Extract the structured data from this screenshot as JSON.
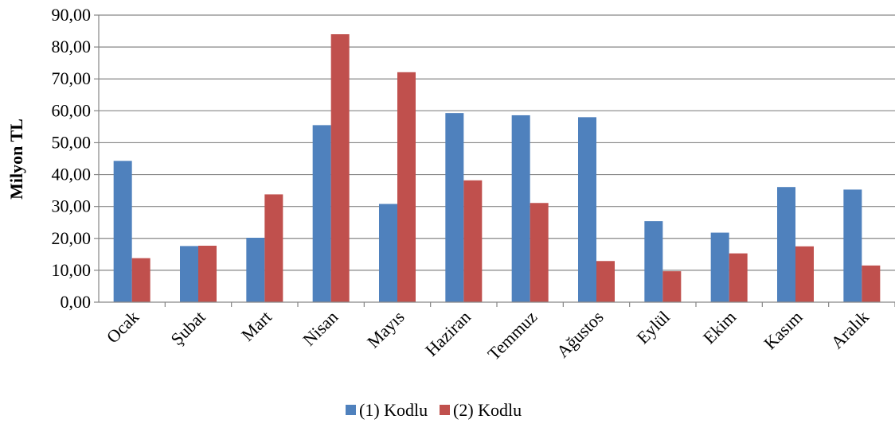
{
  "chart_data": {
    "type": "bar",
    "title": "",
    "xlabel": "",
    "ylabel": "Milyon TL",
    "ylim": [
      0,
      90
    ],
    "y_ticks": [
      "0,00",
      "10,00",
      "20,00",
      "30,00",
      "40,00",
      "50,00",
      "60,00",
      "70,00",
      "80,00",
      "90,00"
    ],
    "categories": [
      "Ocak",
      "Şubat",
      "Mart",
      "Nisan",
      "Mayıs",
      "Haziran",
      "Temmuz",
      "Ağustos",
      "Eylül",
      "Ekim",
      "Kasım",
      "Aralık"
    ],
    "series": [
      {
        "name": "(1) Kodlu",
        "color": "#4f81bd",
        "values": [
          44.3,
          17.6,
          20.2,
          55.5,
          30.8,
          59.3,
          58.6,
          58.0,
          25.4,
          21.8,
          36.1,
          35.3
        ]
      },
      {
        "name": "(2) Kodlu",
        "color": "#c0504d",
        "values": [
          13.8,
          17.7,
          33.8,
          84.0,
          72.1,
          38.2,
          31.1,
          12.9,
          9.7,
          15.3,
          17.5,
          11.5
        ]
      }
    ],
    "grid": true,
    "legend_position": "bottom"
  }
}
